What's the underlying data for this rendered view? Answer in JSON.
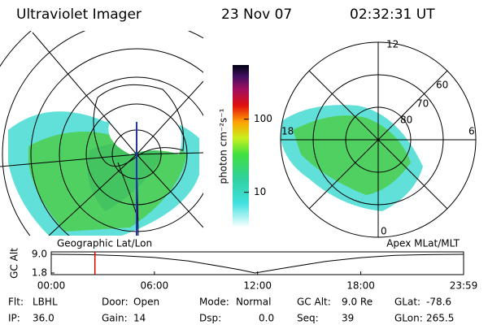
{
  "header": {
    "title": "Ultraviolet Imager",
    "date": "23 Nov 07",
    "time": "02:32:31 UT"
  },
  "left_panel": {
    "label": "Geographic Lat/Lon"
  },
  "right_panel": {
    "label": "Apex MLat/MLT",
    "mlt_labels": [
      "12",
      "18",
      "6",
      "0"
    ],
    "lat_labels": [
      "60",
      "70",
      "80"
    ]
  },
  "colorbar": {
    "label": "photon cm⁻²s⁻¹",
    "lim": [
      3.3,
      550
    ],
    "ticks": [
      10,
      100
    ],
    "log": true
  },
  "alt_plot": {
    "ylabel": "GC Alt",
    "x": [
      0,
      2,
      4,
      6,
      8,
      10,
      11,
      11.85,
      13,
      14,
      16,
      18,
      20,
      22,
      23.98
    ],
    "values": [
      9.0,
      8.9,
      8.5,
      7.8,
      6.4,
      4.2,
      3.0,
      1.8,
      3.1,
      4.2,
      6.3,
      7.7,
      8.6,
      8.9,
      9.0
    ],
    "marker_x": 2.54,
    "xlim": [
      0,
      23.98
    ],
    "ylim": [
      1.8,
      9.0
    ],
    "yticks": [
      {
        "value": 9,
        "label": "9.0"
      },
      1.8
    ],
    "xticks": [
      {
        "value": 0,
        "label": "00:00"
      },
      {
        "value": 6,
        "label": "06:00"
      },
      {
        "value": 12,
        "label": "12:00"
      },
      {
        "value": 18,
        "label": "18:00"
      },
      {
        "value": 23.98,
        "label": "23:59"
      }
    ]
  },
  "footer": [
    [
      {
        "label": "Flt:",
        "value": "LBHL"
      },
      {
        "label": "Door:",
        "value": "Open"
      },
      {
        "label": "Mode:",
        "value": "Normal"
      },
      {
        "label": "GC Alt:",
        "value": "9.0 Re"
      },
      {
        "label": "GLat:",
        "value": "-78.6"
      }
    ],
    [
      {
        "label": "IP:",
        "value": "36.0"
      },
      {
        "label": "Gain:",
        "value": "14"
      },
      {
        "label": "Dsp:",
        "value": "0.0"
      },
      {
        "label": "Seq:",
        "value": "39"
      },
      {
        "label": "GLon:",
        "value": "265.5"
      }
    ]
  ]
}
